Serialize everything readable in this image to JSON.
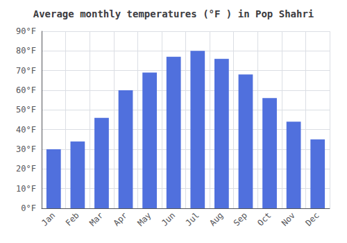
{
  "chart_data": {
    "type": "bar",
    "title": "Average monthly temperatures (°F ) in Pop Shahri",
    "categories": [
      "Jan",
      "Feb",
      "Mar",
      "Apr",
      "May",
      "Jun",
      "Jul",
      "Aug",
      "Sep",
      "Oct",
      "Nov",
      "Dec"
    ],
    "values": [
      30,
      34,
      46,
      60,
      69,
      77,
      80,
      76,
      68,
      56,
      44,
      35
    ],
    "ylim": [
      0,
      90
    ],
    "yticks": [
      {
        "value": 0,
        "label": "0°F"
      },
      {
        "value": 10,
        "label": "10°F"
      },
      {
        "value": 20,
        "label": "20°F"
      },
      {
        "value": 30,
        "label": "30°F"
      },
      {
        "value": 40,
        "label": "40°F"
      },
      {
        "value": 50,
        "label": "50°F"
      },
      {
        "value": 60,
        "label": "60°F"
      },
      {
        "value": 70,
        "label": "70°F"
      },
      {
        "value": 80,
        "label": "80°F"
      },
      {
        "value": 90,
        "label": "90°F"
      }
    ],
    "grid": true
  }
}
